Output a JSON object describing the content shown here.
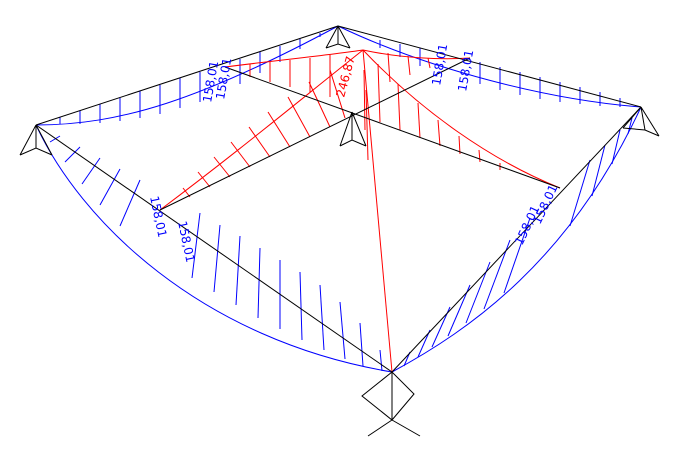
{
  "diagram": {
    "title": "",
    "colors": {
      "frame": "#000000",
      "positive": "#0000ff",
      "negative": "#ff0000",
      "support": "#000000"
    },
    "labels": {
      "left_mid_a": "158,01",
      "left_mid_b": "158,01",
      "back_left_a": "158,01",
      "back_left_b": "158,01",
      "back_right_a": "158,01",
      "back_right_b": "158,01",
      "right_mid_a": "158,01",
      "right_mid_b": "158,01",
      "center_peak": "246,87"
    }
  }
}
